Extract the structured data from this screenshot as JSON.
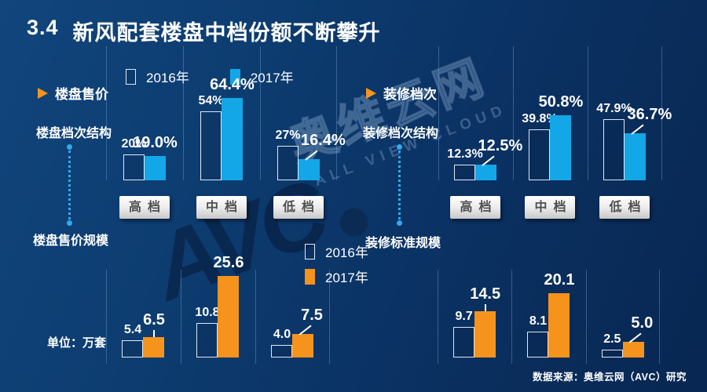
{
  "title": {
    "number": "3.4",
    "text": "新风配套楼盘中档份额不断攀升"
  },
  "panels": {
    "left": {
      "marker": "楼盘售价",
      "structure_label": "楼盘档次结构",
      "scale_label": "楼盘售价规模",
      "unit_label": "单位：万套"
    },
    "right": {
      "marker": "装修档次",
      "structure_label": "装修档次结构",
      "scale_label": "装修标准规模"
    }
  },
  "legends": {
    "top": {
      "items": [
        {
          "label": "2016年",
          "swatch": "outline"
        },
        {
          "label": "2017年",
          "swatch": "cyan"
        }
      ]
    },
    "bottom": {
      "items": [
        {
          "label": "2016年",
          "swatch": "outline"
        },
        {
          "label": "2017年",
          "swatch": "orange"
        }
      ]
    }
  },
  "watermark": {
    "logo": "AVC",
    "cn": "奥维云网",
    "en": "ALL VIEW CLOUD"
  },
  "source": "数据来源：奥维云网（AVC）研究",
  "colors": {
    "cyan": "#14a7e8",
    "orange": "#f6931d",
    "background": "#0b3668"
  },
  "chart_data": [
    {
      "type": "bar",
      "title": "楼盘档次结构",
      "panel": "楼盘售价",
      "unit": "%",
      "categories": [
        "高档",
        "中档",
        "低档"
      ],
      "series": [
        {
          "name": "2016年",
          "values": [
            20,
            54,
            27
          ],
          "labels": [
            "20%",
            "54%",
            "27%"
          ]
        },
        {
          "name": "2017年",
          "values": [
            19.0,
            64.4,
            16.4
          ],
          "labels": [
            "19.0%",
            "64.4%",
            "16.4%"
          ]
        }
      ],
      "ylim": [
        0,
        101
      ],
      "bar_style_2016": "outline",
      "bar_color_2017": "#14a7e8",
      "show_category_boxes": true,
      "grid": "vertical-separators",
      "legend_position": "top"
    },
    {
      "type": "bar",
      "title": "装修档次结构",
      "panel": "装修档次",
      "unit": "%",
      "categories": [
        "高档",
        "中档",
        "低档"
      ],
      "series": [
        {
          "name": "2016年",
          "values": [
            12.3,
            39.8,
            47.9
          ],
          "labels": [
            "12.3%",
            "39.8%",
            "47.9%"
          ]
        },
        {
          "name": "2017年",
          "values": [
            12.5,
            50.8,
            36.7
          ],
          "labels": [
            "12.5%",
            "50.8%",
            "36.7%"
          ]
        }
      ],
      "ylim": [
        0,
        101
      ],
      "bar_style_2016": "outline",
      "bar_color_2017": "#14a7e8",
      "show_category_boxes": true,
      "grid": "vertical-separators",
      "legend_position": "top"
    },
    {
      "type": "bar",
      "title": "楼盘售价规模",
      "unit": "万套",
      "categories": [
        "高档",
        "中档",
        "低档"
      ],
      "series": [
        {
          "name": "2016年",
          "values": [
            5.4,
            10.8,
            4.0
          ],
          "labels": [
            "5.4",
            "10.8",
            "4.0"
          ]
        },
        {
          "name": "2017年",
          "values": [
            6.5,
            25.6,
            7.5
          ],
          "labels": [
            "6.5",
            "25.6",
            "7.5"
          ]
        }
      ],
      "ylim": [
        0,
        31
      ],
      "bar_style_2016": "outline",
      "bar_color_2017": "#f6931d",
      "show_category_boxes": false,
      "grid": "vertical-separators",
      "legend_position": "top"
    },
    {
      "type": "bar",
      "title": "装修标准规模",
      "unit": "万套",
      "categories": [
        "高档",
        "中档",
        "低档"
      ],
      "series": [
        {
          "name": "2016年",
          "values": [
            9.7,
            8.1,
            2.5
          ],
          "labels": [
            "9.7",
            "8.1",
            "2.5"
          ]
        },
        {
          "name": "2017年",
          "values": [
            14.5,
            20.1,
            5.0
          ],
          "labels": [
            "14.5",
            "20.1",
            "5.0"
          ]
        }
      ],
      "ylim": [
        0,
        31
      ],
      "bar_style_2016": "outline",
      "bar_color_2017": "#f6931d",
      "show_category_boxes": false,
      "grid": "vertical-separators",
      "legend_position": "top"
    }
  ]
}
